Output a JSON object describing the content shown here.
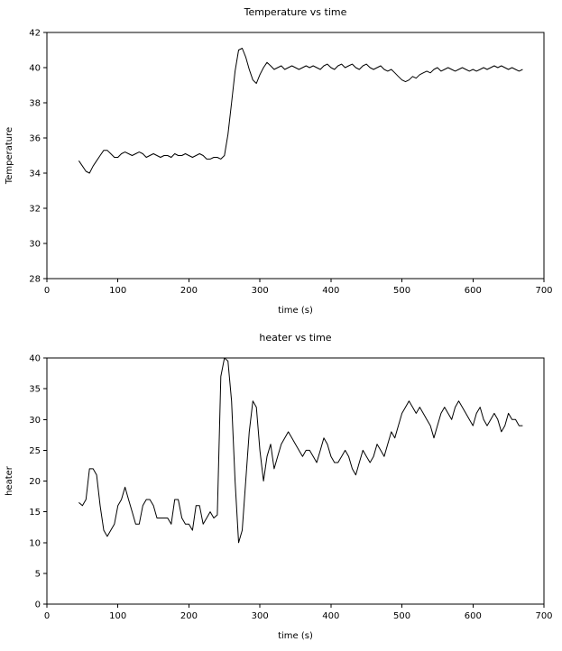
{
  "page": {
    "background": "#ffffff",
    "line_color": "#000000"
  },
  "chart_data": [
    {
      "type": "line",
      "title": "Temperature vs time",
      "xlabel": "time (s)",
      "ylabel": "Temperature",
      "xlim": [
        0,
        700
      ],
      "ylim": [
        28,
        42
      ],
      "xticks": [
        0,
        100,
        200,
        300,
        400,
        500,
        600,
        700
      ],
      "yticks": [
        28,
        30,
        32,
        34,
        36,
        38,
        40,
        42
      ],
      "grid": false,
      "legend": "none",
      "line_color": "#000000",
      "x": [
        45,
        50,
        55,
        60,
        65,
        70,
        75,
        80,
        85,
        90,
        95,
        100,
        105,
        110,
        115,
        120,
        125,
        130,
        135,
        140,
        145,
        150,
        155,
        160,
        165,
        170,
        175,
        180,
        185,
        190,
        195,
        200,
        205,
        210,
        215,
        220,
        225,
        230,
        235,
        240,
        245,
        250,
        255,
        260,
        265,
        270,
        275,
        280,
        285,
        290,
        295,
        300,
        305,
        310,
        315,
        320,
        325,
        330,
        335,
        340,
        345,
        350,
        355,
        360,
        365,
        370,
        375,
        380,
        385,
        390,
        395,
        400,
        405,
        410,
        415,
        420,
        425,
        430,
        435,
        440,
        445,
        450,
        455,
        460,
        465,
        470,
        475,
        480,
        485,
        490,
        495,
        500,
        505,
        510,
        515,
        520,
        525,
        530,
        535,
        540,
        545,
        550,
        555,
        560,
        565,
        570,
        575,
        580,
        585,
        590,
        595,
        600,
        605,
        610,
        615,
        620,
        625,
        630,
        635,
        640,
        645,
        650,
        655,
        660,
        665,
        670
      ],
      "y": [
        34.7,
        34.4,
        34.1,
        34.0,
        34.4,
        34.7,
        35.0,
        35.3,
        35.3,
        35.1,
        34.9,
        34.9,
        35.1,
        35.2,
        35.1,
        35.0,
        35.1,
        35.2,
        35.1,
        34.9,
        35.0,
        35.1,
        35.0,
        34.9,
        35.0,
        35.0,
        34.9,
        35.1,
        35.0,
        35.0,
        35.1,
        35.0,
        34.9,
        35.0,
        35.1,
        35.0,
        34.8,
        34.8,
        34.9,
        34.9,
        34.8,
        35.0,
        36.2,
        38.0,
        39.8,
        41.0,
        41.1,
        40.6,
        39.9,
        39.3,
        39.1,
        39.6,
        40.0,
        40.3,
        40.1,
        39.9,
        40.0,
        40.1,
        39.9,
        40.0,
        40.1,
        40.0,
        39.9,
        40.0,
        40.1,
        40.0,
        40.1,
        40.0,
        39.9,
        40.1,
        40.2,
        40.0,
        39.9,
        40.1,
        40.2,
        40.0,
        40.1,
        40.2,
        40.0,
        39.9,
        40.1,
        40.2,
        40.0,
        39.9,
        40.0,
        40.1,
        39.9,
        39.8,
        39.9,
        39.7,
        39.5,
        39.3,
        39.2,
        39.3,
        39.5,
        39.4,
        39.6,
        39.7,
        39.8,
        39.7,
        39.9,
        40.0,
        39.8,
        39.9,
        40.0,
        39.9,
        39.8,
        39.9,
        40.0,
        39.9,
        39.8,
        39.9,
        39.8,
        39.9,
        40.0,
        39.9,
        40.0,
        40.1,
        40.0,
        40.1,
        40.0,
        39.9,
        40.0,
        39.9,
        39.8,
        39.9
      ]
    },
    {
      "type": "line",
      "title": "heater vs time",
      "xlabel": "time (s)",
      "ylabel": "heater",
      "xlim": [
        0,
        700
      ],
      "ylim": [
        0,
        40
      ],
      "xticks": [
        0,
        100,
        200,
        300,
        400,
        500,
        600,
        700
      ],
      "yticks": [
        0,
        5,
        10,
        15,
        20,
        25,
        30,
        35,
        40
      ],
      "grid": false,
      "legend": "none",
      "line_color": "#000000",
      "x": [
        45,
        50,
        55,
        60,
        65,
        70,
        75,
        80,
        85,
        90,
        95,
        100,
        105,
        110,
        115,
        120,
        125,
        130,
        135,
        140,
        145,
        150,
        155,
        160,
        165,
        170,
        175,
        180,
        185,
        190,
        195,
        200,
        205,
        210,
        215,
        220,
        225,
        230,
        235,
        240,
        245,
        250,
        255,
        260,
        265,
        270,
        275,
        280,
        285,
        290,
        295,
        300,
        305,
        310,
        315,
        320,
        325,
        330,
        335,
        340,
        345,
        350,
        355,
        360,
        365,
        370,
        375,
        380,
        385,
        390,
        395,
        400,
        405,
        410,
        415,
        420,
        425,
        430,
        435,
        440,
        445,
        450,
        455,
        460,
        465,
        470,
        475,
        480,
        485,
        490,
        495,
        500,
        505,
        510,
        515,
        520,
        525,
        530,
        535,
        540,
        545,
        550,
        555,
        560,
        565,
        570,
        575,
        580,
        585,
        590,
        595,
        600,
        605,
        610,
        615,
        620,
        625,
        630,
        635,
        640,
        645,
        650,
        655,
        660,
        665,
        670
      ],
      "y": [
        16.5,
        16.0,
        17.0,
        22.0,
        22.0,
        21.0,
        16.0,
        12.0,
        11.0,
        12.0,
        13.0,
        16.0,
        17.0,
        19.0,
        17.0,
        15.0,
        13.0,
        13.0,
        16.0,
        17.0,
        17.0,
        16.0,
        14.0,
        14.0,
        14.0,
        14.0,
        13.0,
        17.0,
        17.0,
        14.0,
        13.0,
        13.0,
        12.0,
        16.0,
        16.0,
        13.0,
        14.0,
        15.0,
        14.0,
        14.5,
        37.0,
        40.0,
        39.5,
        33.0,
        20.0,
        10.0,
        12.0,
        20.0,
        28.0,
        33.0,
        32.0,
        25.0,
        20.0,
        24.0,
        26.0,
        22.0,
        24.0,
        26.0,
        27.0,
        28.0,
        27.0,
        26.0,
        25.0,
        24.0,
        25.0,
        25.0,
        24.0,
        23.0,
        25.0,
        27.0,
        26.0,
        24.0,
        23.0,
        23.0,
        24.0,
        25.0,
        24.0,
        22.0,
        21.0,
        23.0,
        25.0,
        24.0,
        23.0,
        24.0,
        26.0,
        25.0,
        24.0,
        26.0,
        28.0,
        27.0,
        29.0,
        31.0,
        32.0,
        33.0,
        32.0,
        31.0,
        32.0,
        31.0,
        30.0,
        29.0,
        27.0,
        29.0,
        31.0,
        32.0,
        31.0,
        30.0,
        32.0,
        33.0,
        32.0,
        31.0,
        30.0,
        29.0,
        31.0,
        32.0,
        30.0,
        29.0,
        30.0,
        31.0,
        30.0,
        28.0,
        29.0,
        31.0,
        30.0,
        30.0,
        29.0,
        29.0
      ]
    }
  ]
}
